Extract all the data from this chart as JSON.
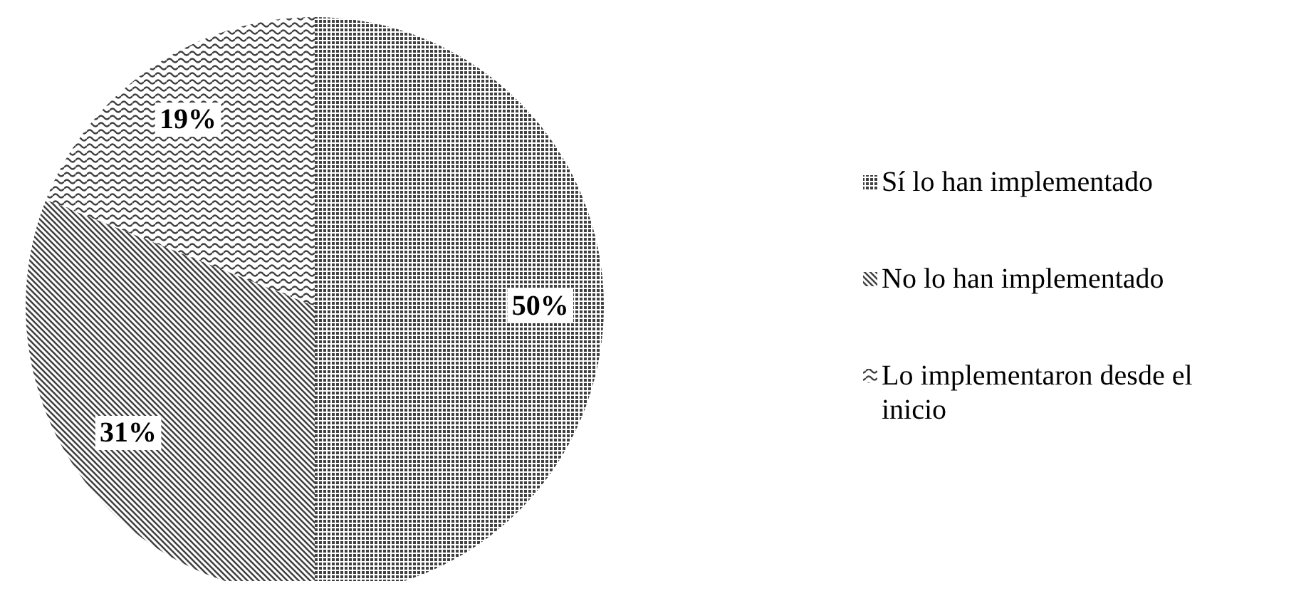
{
  "chart_data": {
    "type": "pie",
    "categories": [
      "Sí lo han implementado",
      "No lo han implementado",
      "Lo implementaron desde el inicio"
    ],
    "values": [
      50,
      31,
      19
    ],
    "colors": [
      "#404040",
      "#404040",
      "#404040"
    ],
    "value_labels": [
      "50%",
      "31%",
      "19%"
    ],
    "legend": "right"
  }
}
